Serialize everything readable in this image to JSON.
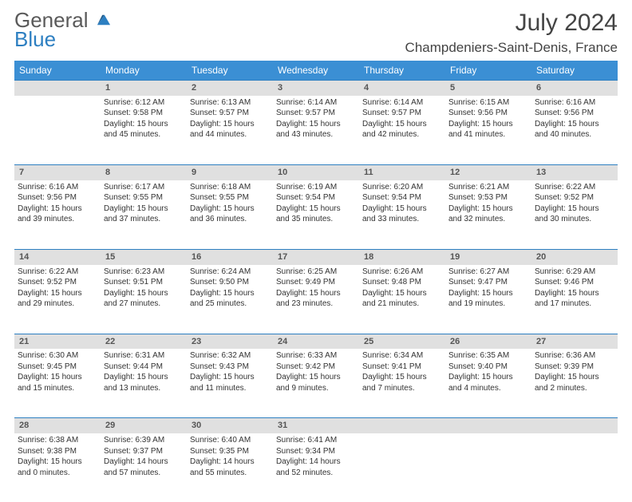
{
  "logo": {
    "general": "General",
    "blue": "Blue"
  },
  "title": "July 2024",
  "location": "Champdeniers-Saint-Denis, France",
  "weekdays": [
    "Sunday",
    "Monday",
    "Tuesday",
    "Wednesday",
    "Thursday",
    "Friday",
    "Saturday"
  ],
  "weeks": [
    {
      "nums": [
        "",
        "1",
        "2",
        "3",
        "4",
        "5",
        "6"
      ],
      "cells": [
        {
          "lines": []
        },
        {
          "lines": [
            "Sunrise: 6:12 AM",
            "Sunset: 9:58 PM",
            "Daylight: 15 hours",
            "and 45 minutes."
          ]
        },
        {
          "lines": [
            "Sunrise: 6:13 AM",
            "Sunset: 9:57 PM",
            "Daylight: 15 hours",
            "and 44 minutes."
          ]
        },
        {
          "lines": [
            "Sunrise: 6:14 AM",
            "Sunset: 9:57 PM",
            "Daylight: 15 hours",
            "and 43 minutes."
          ]
        },
        {
          "lines": [
            "Sunrise: 6:14 AM",
            "Sunset: 9:57 PM",
            "Daylight: 15 hours",
            "and 42 minutes."
          ]
        },
        {
          "lines": [
            "Sunrise: 6:15 AM",
            "Sunset: 9:56 PM",
            "Daylight: 15 hours",
            "and 41 minutes."
          ]
        },
        {
          "lines": [
            "Sunrise: 6:16 AM",
            "Sunset: 9:56 PM",
            "Daylight: 15 hours",
            "and 40 minutes."
          ]
        }
      ]
    },
    {
      "nums": [
        "7",
        "8",
        "9",
        "10",
        "11",
        "12",
        "13"
      ],
      "cells": [
        {
          "lines": [
            "Sunrise: 6:16 AM",
            "Sunset: 9:56 PM",
            "Daylight: 15 hours",
            "and 39 minutes."
          ]
        },
        {
          "lines": [
            "Sunrise: 6:17 AM",
            "Sunset: 9:55 PM",
            "Daylight: 15 hours",
            "and 37 minutes."
          ]
        },
        {
          "lines": [
            "Sunrise: 6:18 AM",
            "Sunset: 9:55 PM",
            "Daylight: 15 hours",
            "and 36 minutes."
          ]
        },
        {
          "lines": [
            "Sunrise: 6:19 AM",
            "Sunset: 9:54 PM",
            "Daylight: 15 hours",
            "and 35 minutes."
          ]
        },
        {
          "lines": [
            "Sunrise: 6:20 AM",
            "Sunset: 9:54 PM",
            "Daylight: 15 hours",
            "and 33 minutes."
          ]
        },
        {
          "lines": [
            "Sunrise: 6:21 AM",
            "Sunset: 9:53 PM",
            "Daylight: 15 hours",
            "and 32 minutes."
          ]
        },
        {
          "lines": [
            "Sunrise: 6:22 AM",
            "Sunset: 9:52 PM",
            "Daylight: 15 hours",
            "and 30 minutes."
          ]
        }
      ]
    },
    {
      "nums": [
        "14",
        "15",
        "16",
        "17",
        "18",
        "19",
        "20"
      ],
      "cells": [
        {
          "lines": [
            "Sunrise: 6:22 AM",
            "Sunset: 9:52 PM",
            "Daylight: 15 hours",
            "and 29 minutes."
          ]
        },
        {
          "lines": [
            "Sunrise: 6:23 AM",
            "Sunset: 9:51 PM",
            "Daylight: 15 hours",
            "and 27 minutes."
          ]
        },
        {
          "lines": [
            "Sunrise: 6:24 AM",
            "Sunset: 9:50 PM",
            "Daylight: 15 hours",
            "and 25 minutes."
          ]
        },
        {
          "lines": [
            "Sunrise: 6:25 AM",
            "Sunset: 9:49 PM",
            "Daylight: 15 hours",
            "and 23 minutes."
          ]
        },
        {
          "lines": [
            "Sunrise: 6:26 AM",
            "Sunset: 9:48 PM",
            "Daylight: 15 hours",
            "and 21 minutes."
          ]
        },
        {
          "lines": [
            "Sunrise: 6:27 AM",
            "Sunset: 9:47 PM",
            "Daylight: 15 hours",
            "and 19 minutes."
          ]
        },
        {
          "lines": [
            "Sunrise: 6:29 AM",
            "Sunset: 9:46 PM",
            "Daylight: 15 hours",
            "and 17 minutes."
          ]
        }
      ]
    },
    {
      "nums": [
        "21",
        "22",
        "23",
        "24",
        "25",
        "26",
        "27"
      ],
      "cells": [
        {
          "lines": [
            "Sunrise: 6:30 AM",
            "Sunset: 9:45 PM",
            "Daylight: 15 hours",
            "and 15 minutes."
          ]
        },
        {
          "lines": [
            "Sunrise: 6:31 AM",
            "Sunset: 9:44 PM",
            "Daylight: 15 hours",
            "and 13 minutes."
          ]
        },
        {
          "lines": [
            "Sunrise: 6:32 AM",
            "Sunset: 9:43 PM",
            "Daylight: 15 hours",
            "and 11 minutes."
          ]
        },
        {
          "lines": [
            "Sunrise: 6:33 AM",
            "Sunset: 9:42 PM",
            "Daylight: 15 hours",
            "and 9 minutes."
          ]
        },
        {
          "lines": [
            "Sunrise: 6:34 AM",
            "Sunset: 9:41 PM",
            "Daylight: 15 hours",
            "and 7 minutes."
          ]
        },
        {
          "lines": [
            "Sunrise: 6:35 AM",
            "Sunset: 9:40 PM",
            "Daylight: 15 hours",
            "and 4 minutes."
          ]
        },
        {
          "lines": [
            "Sunrise: 6:36 AM",
            "Sunset: 9:39 PM",
            "Daylight: 15 hours",
            "and 2 minutes."
          ]
        }
      ]
    },
    {
      "nums": [
        "28",
        "29",
        "30",
        "31",
        "",
        "",
        ""
      ],
      "cells": [
        {
          "lines": [
            "Sunrise: 6:38 AM",
            "Sunset: 9:38 PM",
            "Daylight: 15 hours",
            "and 0 minutes."
          ]
        },
        {
          "lines": [
            "Sunrise: 6:39 AM",
            "Sunset: 9:37 PM",
            "Daylight: 14 hours",
            "and 57 minutes."
          ]
        },
        {
          "lines": [
            "Sunrise: 6:40 AM",
            "Sunset: 9:35 PM",
            "Daylight: 14 hours",
            "and 55 minutes."
          ]
        },
        {
          "lines": [
            "Sunrise: 6:41 AM",
            "Sunset: 9:34 PM",
            "Daylight: 14 hours",
            "and 52 minutes."
          ]
        },
        {
          "lines": []
        },
        {
          "lines": []
        },
        {
          "lines": []
        }
      ]
    }
  ],
  "colors": {
    "header_bg": "#3b8fd4",
    "daynum_bg": "#e0e0e0",
    "border": "#2d7fc1",
    "logo_gray": "#5a5a5a",
    "logo_blue": "#2d7fc1"
  }
}
